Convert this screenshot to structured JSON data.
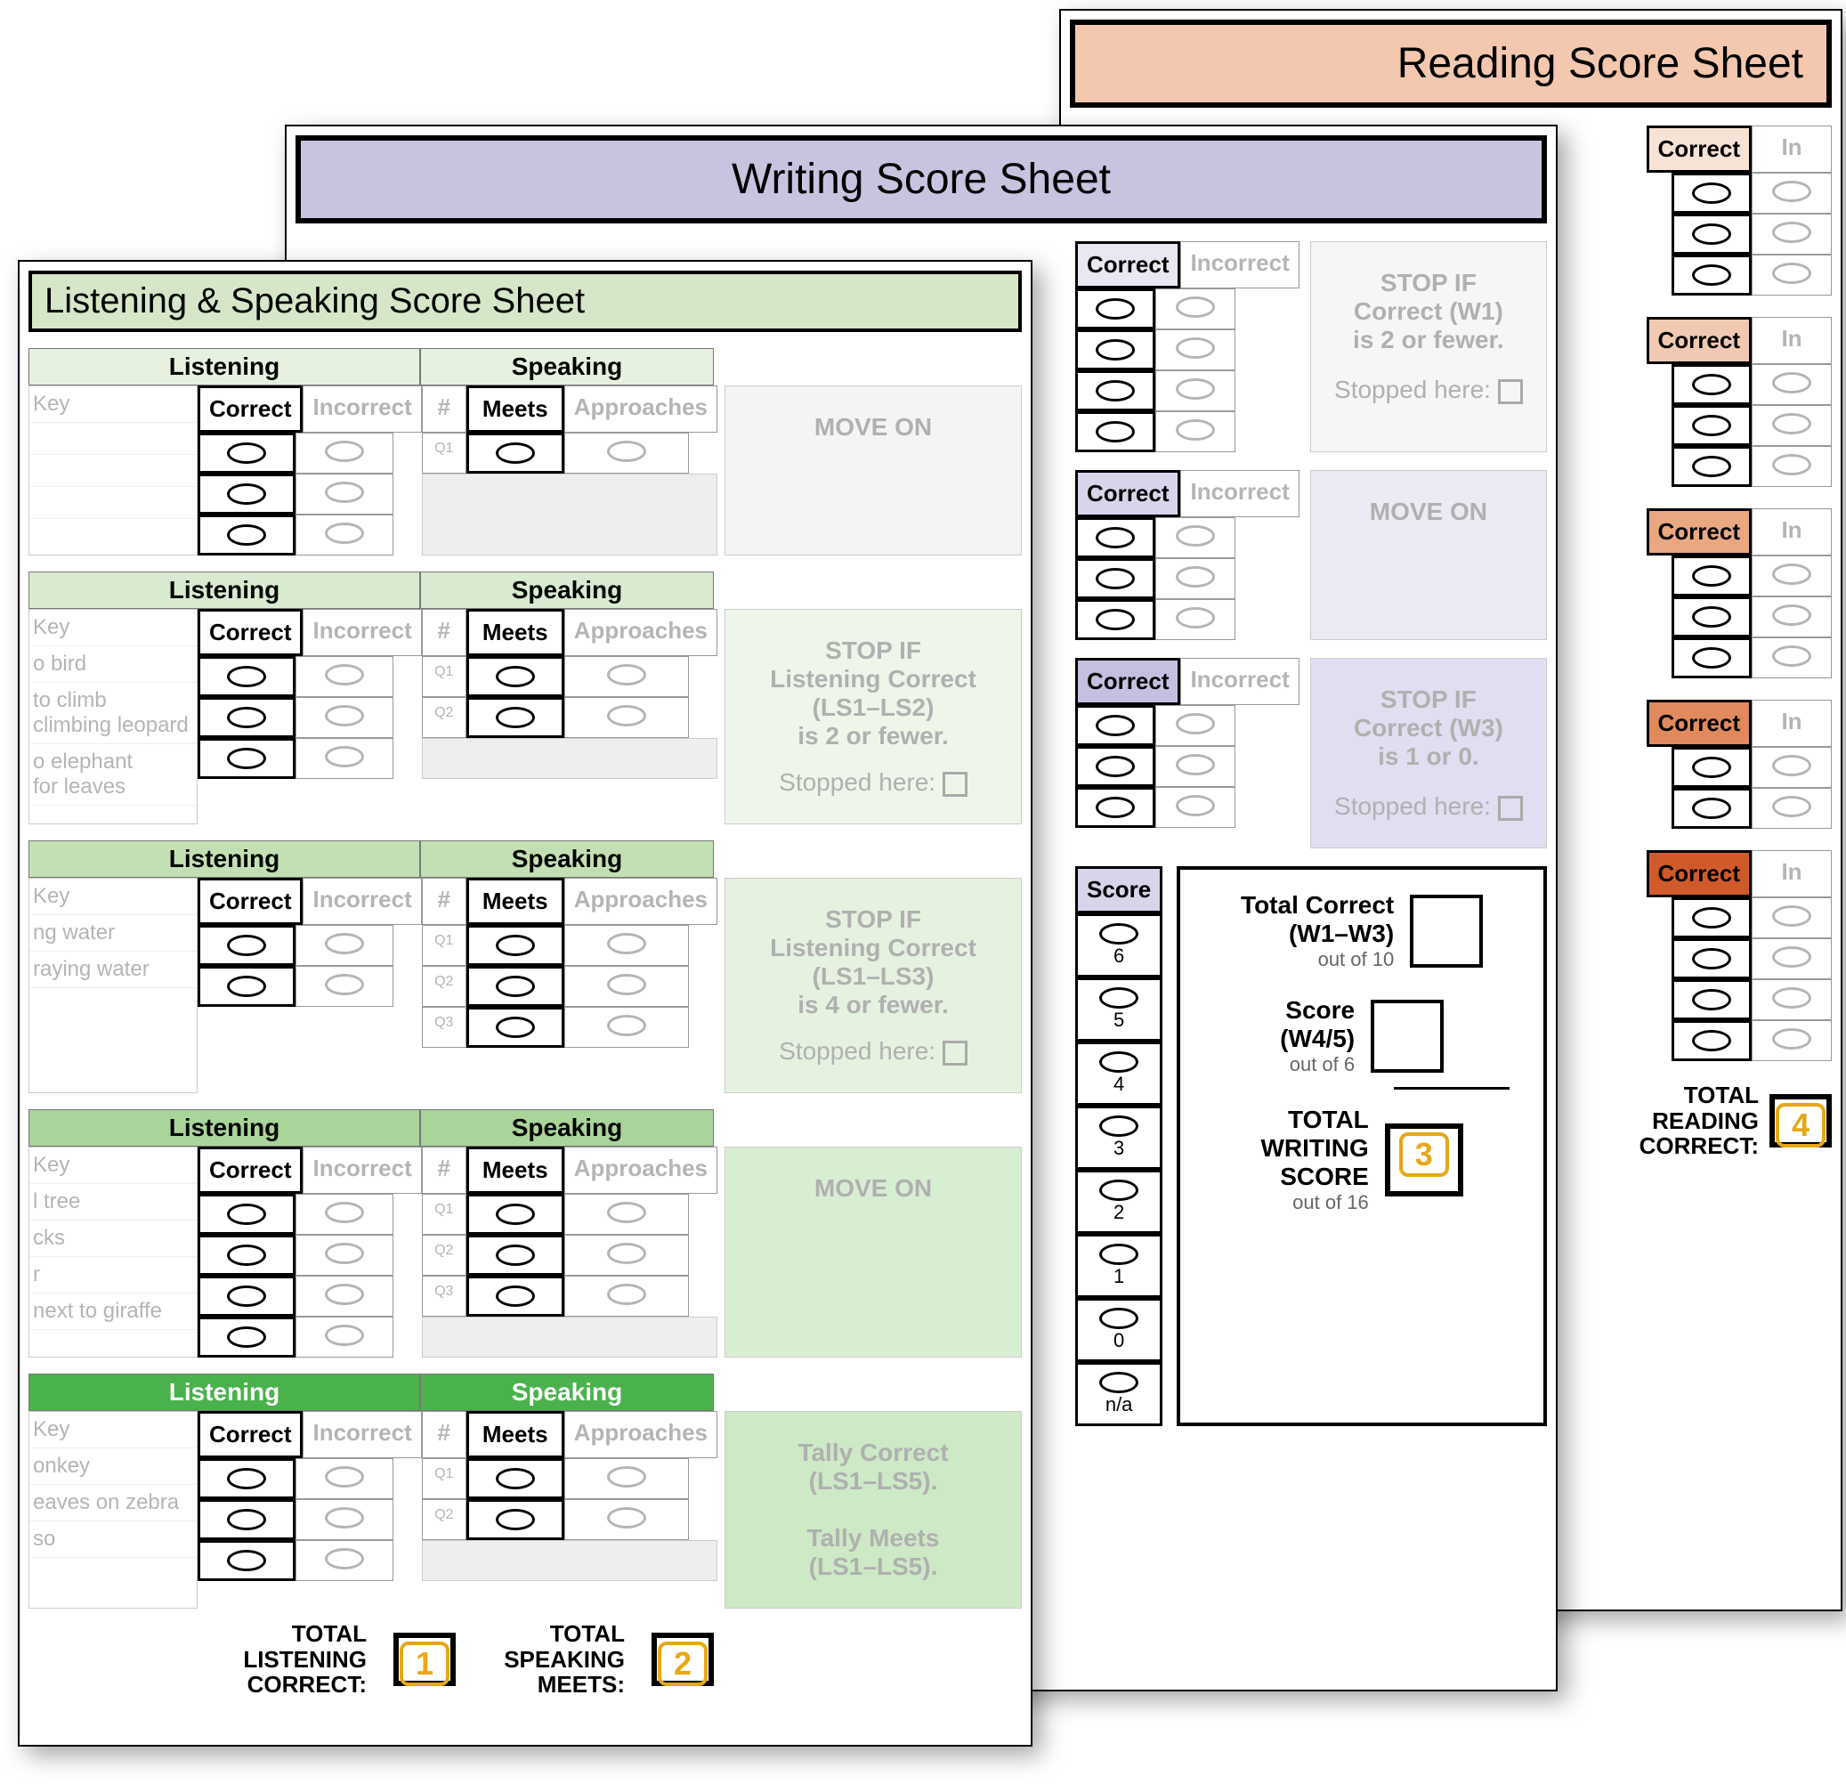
{
  "reading": {
    "title": "Reading Score Sheet",
    "header_bg": "#f3c8af",
    "correct_label": "Correct",
    "incorrect_label": "Incorrect",
    "sections": [
      {
        "shade": "r1",
        "rows": 3
      },
      {
        "shade": "r2",
        "rows": 3
      },
      {
        "shade": "r3",
        "rows": 3
      },
      {
        "shade": "r4",
        "rows": 2
      },
      {
        "shade": "r5",
        "rows": 4
      }
    ],
    "total_label": "TOTAL\nREADING\nCORRECT:",
    "badge": "4"
  },
  "writing": {
    "title": "Writing Score Sheet",
    "header_bg": "#cac3e0",
    "correct_label": "Correct",
    "incorrect_label": "Incorrect",
    "sec1": {
      "rows": 4,
      "info": "STOP IF\nCorrect (W1)\nis 2 or fewer.",
      "stopped": "Stopped here:"
    },
    "sec2": {
      "rows": 3,
      "info": "MOVE ON"
    },
    "sec3": {
      "rows": 3,
      "info": "STOP IF\nCorrect (W3)\nis 1 or 0.",
      "stopped": "Stopped here:"
    },
    "score_label": "Score",
    "score_ticks": [
      "6",
      "5",
      "4",
      "3",
      "2",
      "1",
      "0",
      "n/a"
    ],
    "totals": {
      "t1": "Total Correct\n(W1–W3)",
      "t1s": "out of 10",
      "t2": "Score\n(W4/5)",
      "t2s": "out of 6",
      "t3": "TOTAL\nWRITING\nSCORE",
      "t3s": "out of 16",
      "badge": "3"
    }
  },
  "ls": {
    "title": "Listening & Speaking Score Sheet",
    "header_bg": "#d5e6c9",
    "listening_label": "Listening",
    "speaking_label": "Speaking",
    "correct": "Correct",
    "incorrect": "Incorrect",
    "meets": "Meets",
    "approaches": "Approaches",
    "key": "Key",
    "sections": [
      {
        "shade": "g1",
        "lrows": 3,
        "srows": [
          "Q1"
        ],
        "keys": [
          "Key",
          "",
          "",
          ""
        ],
        "info": "MOVE ON",
        "stopped": null,
        "infobg": "#f4f4f4"
      },
      {
        "shade": "g2",
        "lrows": 3,
        "srows": [
          "Q1",
          "Q2"
        ],
        "keys": [
          "Key",
          "o bird",
          "to climb\nclimbing leopard",
          "o elephant\nfor leaves"
        ],
        "info": "STOP IF\nListening Correct\n(LS1–LS2)\nis 2 or fewer.",
        "stopped": "Stopped here:",
        "infobg": "#eef6ea"
      },
      {
        "shade": "g3",
        "lrows": 2,
        "srows": [
          "Q1",
          "Q2",
          "Q3"
        ],
        "keys": [
          "Key",
          "ng water",
          "raying water"
        ],
        "info": "STOP IF\nListening Correct\n(LS1–LS3)\nis 4 or fewer.",
        "stopped": "Stopped here:",
        "infobg": "#e6f2e0"
      },
      {
        "shade": "g4",
        "lrows": 4,
        "srows": [
          "Q1",
          "Q2",
          "Q3"
        ],
        "keys": [
          "Key",
          "l tree",
          "cks",
          "r",
          "next to giraffe"
        ],
        "info": "MOVE ON",
        "stopped": null,
        "infobg": "#d8eed2"
      },
      {
        "shade": "g5",
        "lrows": 3,
        "srows": [
          "Q1",
          "Q2"
        ],
        "keys": [
          "Key",
          "onkey",
          "eaves on zebra",
          "so"
        ],
        "info": "Tally Correct\n(LS1–LS5).\n\nTally Meets\n(LS1–LS5).",
        "stopped": null,
        "infobg": "#cde9c6"
      }
    ],
    "total_listening": "TOTAL\nLISTENING\nCORRECT:",
    "badge1": "1",
    "total_speaking": "TOTAL\nSPEAKING\nMEETS:",
    "badge2": "2"
  }
}
